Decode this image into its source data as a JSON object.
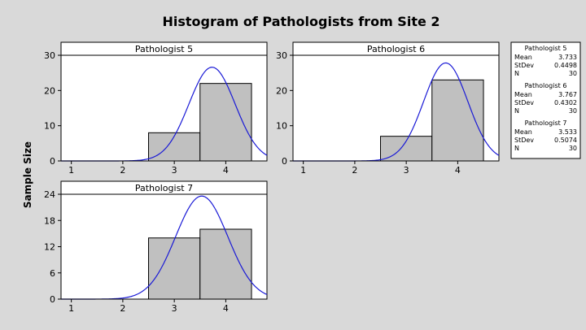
{
  "chart_data": {
    "type": "bar",
    "title": "Histogram of Pathologists from Site 2",
    "ylabel": "Sample Size",
    "xlim": [
      0.8,
      4.8
    ],
    "xticks": [
      1,
      2,
      3,
      4
    ],
    "bin_width": 1,
    "curve_color": "#1a1ad6",
    "bar_fill": "#c0c0c0",
    "panels": [
      {
        "name": "Pathologist 5",
        "ylim": [
          0,
          30
        ],
        "yticks": [
          0,
          10,
          20,
          30
        ],
        "bins": [
          {
            "center": 3,
            "count": 8
          },
          {
            "center": 4,
            "count": 22
          }
        ],
        "stats": {
          "mean": "3.733",
          "stdev": "0.4498",
          "n": "30"
        }
      },
      {
        "name": "Pathologist 6",
        "ylim": [
          0,
          30
        ],
        "yticks": [
          0,
          10,
          20,
          30
        ],
        "bins": [
          {
            "center": 3,
            "count": 7
          },
          {
            "center": 4,
            "count": 23
          }
        ],
        "stats": {
          "mean": "3.767",
          "stdev": "0.4302",
          "n": "30"
        }
      },
      {
        "name": "Pathologist 7",
        "ylim": [
          0,
          24
        ],
        "yticks": [
          0,
          6,
          12,
          18,
          24
        ],
        "bins": [
          {
            "center": 3,
            "count": 14
          },
          {
            "center": 4,
            "count": 16
          }
        ],
        "stats": {
          "mean": "3.533",
          "stdev": "0.5074",
          "n": "30"
        }
      }
    ],
    "legend": {
      "position": "right",
      "labels": {
        "mean": "Mean",
        "stdev": "StDev",
        "n": "N"
      }
    }
  }
}
